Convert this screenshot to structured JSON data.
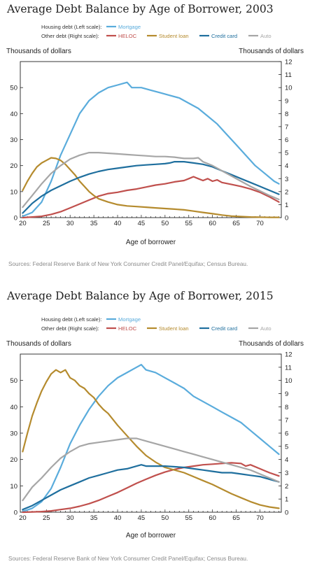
{
  "colors": {
    "mortgage": "#5aacdc",
    "heloc": "#c0504d",
    "student_loan": "#b58b2e",
    "credit_card": "#1f6f9e",
    "auto": "#a6a6a6"
  },
  "chart_data": [
    {
      "type": "line",
      "title": "Average Debt Balance by Age of Borrower, 2003",
      "xlabel": "Age of borrower",
      "ylabel_left": "Thousands of dollars",
      "ylabel_right": "Thousands of dollars",
      "xlim": [
        19.5,
        74.5
      ],
      "xticks": [
        20,
        25,
        30,
        35,
        40,
        45,
        50,
        55,
        60,
        65,
        70
      ],
      "ylim_left": [
        0,
        60
      ],
      "yticks_left": [
        0,
        10,
        20,
        30,
        40,
        50
      ],
      "ylim_right": [
        0,
        12
      ],
      "yticks_right": [
        0,
        1,
        2,
        3,
        4,
        5,
        6,
        7,
        8,
        9,
        10,
        11,
        12
      ],
      "legend": {
        "housing_label": "Housing debt (Left scale):",
        "other_label": "Other debt (Right scale):",
        "mortgage": "Mortgage",
        "heloc": "HELOC",
        "student_loan": "Student loan",
        "credit_card": "Credit card",
        "auto": "Auto"
      },
      "source": "Sources: Federal Reserve Bank of New York Consumer Credit Panel/Equifax; Census Bureau.",
      "series": [
        {
          "name": "Mortgage",
          "axis": "left",
          "color_key": "mortgage",
          "x": [
            20,
            22,
            24,
            26,
            28,
            30,
            32,
            34,
            36,
            38,
            40,
            42,
            43,
            45,
            47,
            49,
            51,
            53,
            55,
            57,
            59,
            61,
            63,
            65,
            67,
            69,
            71,
            73,
            74
          ],
          "y": [
            0.5,
            2,
            6,
            14,
            24,
            32,
            40,
            45,
            48,
            50,
            51,
            52,
            50,
            50,
            49,
            48,
            47,
            46,
            44,
            42,
            39,
            36,
            32,
            28,
            24,
            20,
            17,
            14,
            13
          ]
        },
        {
          "name": "HELOC",
          "axis": "right",
          "color_key": "heloc",
          "x": [
            20,
            22,
            24,
            26,
            28,
            30,
            32,
            34,
            36,
            38,
            40,
            42,
            44,
            46,
            48,
            50,
            52,
            54,
            55,
            56,
            57,
            58,
            59,
            60,
            61,
            62,
            64,
            66,
            68,
            70,
            72,
            74
          ],
          "y": [
            0,
            0.05,
            0.1,
            0.25,
            0.45,
            0.75,
            1.05,
            1.35,
            1.65,
            1.85,
            1.95,
            2.1,
            2.2,
            2.35,
            2.5,
            2.6,
            2.75,
            2.85,
            3.0,
            3.15,
            3.0,
            2.85,
            3.0,
            2.8,
            2.9,
            2.7,
            2.55,
            2.4,
            2.2,
            1.95,
            1.6,
            1.2
          ]
        },
        {
          "name": "Student loan",
          "axis": "right",
          "color_key": "student_loan",
          "x": [
            20,
            21,
            22,
            23,
            24,
            25,
            26,
            27,
            28,
            29,
            30,
            31,
            32,
            33,
            34,
            35,
            36,
            38,
            40,
            42,
            44,
            46,
            48,
            50,
            52,
            54,
            56,
            58,
            60,
            62,
            64,
            66,
            68,
            70,
            72,
            74
          ],
          "y": [
            2.1,
            2.8,
            3.4,
            3.9,
            4.2,
            4.4,
            4.6,
            4.55,
            4.4,
            4.1,
            3.7,
            3.3,
            2.8,
            2.4,
            2.0,
            1.7,
            1.45,
            1.2,
            1.0,
            0.9,
            0.85,
            0.8,
            0.75,
            0.7,
            0.65,
            0.6,
            0.5,
            0.4,
            0.3,
            0.2,
            0.12,
            0.08,
            0.05,
            0.03,
            0.02,
            0.02
          ]
        },
        {
          "name": "Credit card",
          "axis": "right",
          "color_key": "credit_card",
          "x": [
            20,
            22,
            24,
            26,
            28,
            30,
            32,
            34,
            36,
            38,
            40,
            42,
            44,
            46,
            48,
            50,
            51,
            52,
            54,
            55,
            56,
            58,
            60,
            62,
            64,
            66,
            68,
            70,
            72,
            74
          ],
          "y": [
            0.35,
            1.1,
            1.65,
            2.1,
            2.45,
            2.8,
            3.1,
            3.35,
            3.55,
            3.7,
            3.8,
            3.9,
            4.0,
            4.05,
            4.1,
            4.15,
            4.2,
            4.3,
            4.3,
            4.25,
            4.2,
            4.1,
            3.9,
            3.6,
            3.3,
            3.0,
            2.7,
            2.4,
            2.1,
            1.8
          ]
        },
        {
          "name": "Auto",
          "axis": "right",
          "color_key": "auto",
          "x": [
            20,
            22,
            24,
            26,
            28,
            30,
            32,
            34,
            36,
            38,
            40,
            42,
            44,
            46,
            48,
            50,
            52,
            54,
            56,
            57,
            58,
            60,
            62,
            64,
            66,
            68,
            70,
            72,
            74
          ],
          "y": [
            0.8,
            1.7,
            2.6,
            3.4,
            4.0,
            4.5,
            4.8,
            5.0,
            5.0,
            4.95,
            4.9,
            4.85,
            4.8,
            4.75,
            4.7,
            4.7,
            4.65,
            4.55,
            4.55,
            4.6,
            4.3,
            4.0,
            3.6,
            3.2,
            2.8,
            2.4,
            2.05,
            1.7,
            1.4
          ]
        }
      ]
    },
    {
      "type": "line",
      "title": "Average Debt Balance by Age of Borrower, 2015",
      "xlabel": "Age of borrower",
      "ylabel_left": "Thousands of dollars",
      "ylabel_right": "Thousands of dollars",
      "xlim": [
        19.5,
        74.5
      ],
      "xticks": [
        20,
        25,
        30,
        35,
        40,
        45,
        50,
        55,
        60,
        65,
        70
      ],
      "ylim_left": [
        0,
        60
      ],
      "yticks_left": [
        0,
        10,
        20,
        30,
        40,
        50
      ],
      "ylim_right": [
        0,
        12
      ],
      "yticks_right": [
        0,
        1,
        2,
        3,
        4,
        5,
        6,
        7,
        8,
        9,
        10,
        11,
        12
      ],
      "legend": {
        "housing_label": "Housing debt (Left scale):",
        "other_label": "Other debt (Right scale):",
        "mortgage": "Mortgage",
        "heloc": "HELOC",
        "student_loan": "Student loan",
        "credit_card": "Credit card",
        "auto": "Auto"
      },
      "source": "Sources: Federal Reserve Bank of New York Consumer Credit Panel/Equifax; Census Bureau.",
      "series": [
        {
          "name": "Mortgage",
          "axis": "left",
          "color_key": "mortgage",
          "x": [
            20,
            22,
            24,
            26,
            28,
            30,
            32,
            34,
            36,
            38,
            40,
            42,
            44,
            45,
            46,
            48,
            50,
            52,
            54,
            56,
            58,
            60,
            62,
            64,
            66,
            68,
            70,
            72,
            74
          ],
          "y": [
            0.3,
            1.5,
            4,
            9,
            17,
            26,
            33,
            39,
            44,
            48,
            51,
            53,
            55,
            56,
            54,
            53,
            51,
            49,
            47,
            44,
            42,
            40,
            38,
            36,
            34,
            31,
            28,
            25,
            22
          ]
        },
        {
          "name": "HELOC",
          "axis": "right",
          "color_key": "heloc",
          "x": [
            20,
            22,
            24,
            26,
            28,
            30,
            32,
            34,
            36,
            38,
            40,
            42,
            44,
            46,
            48,
            50,
            52,
            54,
            56,
            58,
            60,
            62,
            64,
            66,
            67,
            68,
            70,
            72,
            74
          ],
          "y": [
            0,
            0.02,
            0.05,
            0.1,
            0.2,
            0.3,
            0.45,
            0.65,
            0.9,
            1.2,
            1.5,
            1.85,
            2.2,
            2.5,
            2.8,
            3.05,
            3.25,
            3.4,
            3.5,
            3.6,
            3.65,
            3.7,
            3.75,
            3.7,
            3.5,
            3.6,
            3.3,
            3.0,
            2.75
          ]
        },
        {
          "name": "Student loan",
          "axis": "right",
          "color_key": "student_loan",
          "x": [
            20,
            21,
            22,
            23,
            24,
            25,
            26,
            27,
            28,
            29,
            30,
            31,
            32,
            33,
            34,
            35,
            36,
            37,
            38,
            40,
            42,
            44,
            46,
            48,
            50,
            52,
            54,
            56,
            58,
            60,
            62,
            64,
            66,
            68,
            70,
            72,
            74
          ],
          "y": [
            4.6,
            6.0,
            7.3,
            8.3,
            9.2,
            9.9,
            10.5,
            10.8,
            10.6,
            10.8,
            10.2,
            10.0,
            9.6,
            9.4,
            9.0,
            8.7,
            8.2,
            7.8,
            7.5,
            6.6,
            5.8,
            5.0,
            4.3,
            3.8,
            3.4,
            3.2,
            3.0,
            2.7,
            2.4,
            2.1,
            1.75,
            1.4,
            1.1,
            0.8,
            0.55,
            0.4,
            0.3
          ]
        },
        {
          "name": "Credit card",
          "axis": "right",
          "color_key": "credit_card",
          "x": [
            20,
            22,
            24,
            26,
            28,
            30,
            32,
            34,
            36,
            38,
            40,
            42,
            44,
            45,
            46,
            48,
            50,
            52,
            54,
            56,
            58,
            60,
            62,
            64,
            66,
            68,
            70,
            72,
            74
          ],
          "y": [
            0.2,
            0.5,
            0.9,
            1.3,
            1.7,
            2.0,
            2.3,
            2.6,
            2.8,
            3.0,
            3.2,
            3.3,
            3.5,
            3.6,
            3.5,
            3.5,
            3.5,
            3.45,
            3.4,
            3.3,
            3.2,
            3.1,
            3.0,
            3.0,
            2.9,
            2.8,
            2.7,
            2.5,
            2.3
          ]
        },
        {
          "name": "Auto",
          "axis": "right",
          "color_key": "auto",
          "x": [
            20,
            22,
            24,
            26,
            28,
            30,
            32,
            34,
            36,
            38,
            40,
            42,
            44,
            46,
            48,
            50,
            52,
            54,
            56,
            58,
            60,
            62,
            64,
            66,
            68,
            70,
            72,
            74
          ],
          "y": [
            0.9,
            1.9,
            2.6,
            3.4,
            4.1,
            4.6,
            5.0,
            5.2,
            5.3,
            5.4,
            5.5,
            5.6,
            5.6,
            5.4,
            5.2,
            5.0,
            4.8,
            4.6,
            4.4,
            4.2,
            4.0,
            3.8,
            3.6,
            3.4,
            3.2,
            2.9,
            2.6,
            2.3
          ]
        }
      ]
    }
  ]
}
